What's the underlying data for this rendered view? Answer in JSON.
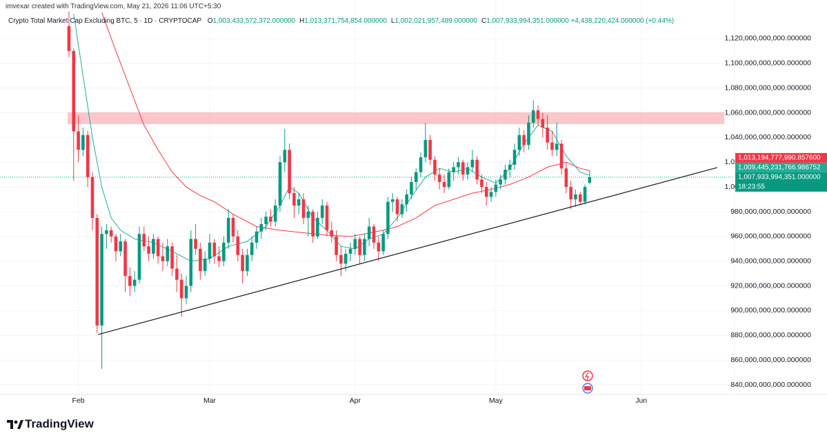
{
  "header": {
    "credit": "imvexar created with TradingView.com, May 21, 2026 11:06 UTC+5:30"
  },
  "chart_data": {
    "type": "candlestick",
    "title": "Crypto Total Market Cap Excluding BTC, 5 · 1D · CRYPTOCAP",
    "ohlc": [
      {
        "key": "O",
        "value": "1,003,433,572,372.000000"
      },
      {
        "key": "H",
        "value": "1,013,371,754,854.000000"
      },
      {
        "key": "L",
        "value": "1,002,021,957,489.000000"
      },
      {
        "key": "C",
        "value": "1,007,933,994,351.000000"
      }
    ],
    "change": "+4,438,220,424.000000 (+0.44%)",
    "up_color": "#089981",
    "down_color": "#f23645",
    "xlim": [
      -14.7,
      141.9
    ],
    "xticks": [
      {
        "value": 2,
        "label": "Feb"
      },
      {
        "value": 30,
        "label": "Mar"
      },
      {
        "value": 61,
        "label": "Apr"
      },
      {
        "value": 91,
        "label": "May"
      },
      {
        "value": 122,
        "label": "Jun"
      }
    ],
    "ylim": [
      832200000000,
      1151200000000
    ],
    "yticks": [
      {
        "value": 840000000000,
        "label": "840,000,000,000.000000"
      },
      {
        "value": 860000000000,
        "label": "860,000,000,000.000000"
      },
      {
        "value": 880000000000,
        "label": "880,000,000,000.000000"
      },
      {
        "value": 900000000000,
        "label": "900,000,000,000.000000"
      },
      {
        "value": 920000000000,
        "label": "920,000,000,000.000000"
      },
      {
        "value": 940000000000,
        "label": "940,000,000,000.000000"
      },
      {
        "value": 960000000000,
        "label": "960,000,000,000.000000"
      },
      {
        "value": 980000000000,
        "label": "980,000,000,000.000000"
      },
      {
        "value": 1000000000000,
        "label": "1,000,000,000,000.000000"
      },
      {
        "value": 1020000000000,
        "label": "1,020,000,000,000.000000"
      },
      {
        "value": 1040000000000,
        "label": "1,040,000,000,000.000000"
      },
      {
        "value": 1060000000000,
        "label": "1,060,000,000,000.000000"
      },
      {
        "value": 1080000000000,
        "label": "1,080,000,000,000.000000"
      },
      {
        "value": 1100000000000,
        "label": "1,100,000,000,000.000000"
      },
      {
        "value": 1120000000000,
        "label": "1,120,000,000,000.000000"
      }
    ],
    "grid": true,
    "candles": [
      [
        1130000000000,
        1142000000000,
        1105000000000,
        1110000000000
      ],
      [
        1110000000000,
        1112000000000,
        1005000000000,
        1045000000000
      ],
      [
        1045000000000,
        1058000000000,
        1020000000000,
        1030000000000
      ],
      [
        1030000000000,
        1048000000000,
        1025000000000,
        1042000000000
      ],
      [
        1042000000000,
        1045000000000,
        1000000000000,
        1008000000000
      ],
      [
        1008000000000,
        1012000000000,
        965000000000,
        975000000000
      ],
      [
        975000000000,
        978000000000,
        882000000000,
        888000000000
      ],
      [
        888000000000,
        968000000000,
        853000000000,
        962000000000
      ],
      [
        962000000000,
        970000000000,
        950000000000,
        965000000000
      ],
      [
        965000000000,
        968000000000,
        955000000000,
        960000000000
      ],
      [
        960000000000,
        962000000000,
        940000000000,
        948000000000
      ],
      [
        948000000000,
        962000000000,
        944000000000,
        956000000000
      ],
      [
        956000000000,
        958000000000,
        915000000000,
        928000000000
      ],
      [
        928000000000,
        935000000000,
        912000000000,
        920000000000
      ],
      [
        920000000000,
        932000000000,
        915000000000,
        925000000000
      ],
      [
        925000000000,
        968000000000,
        922000000000,
        962000000000
      ],
      [
        962000000000,
        968000000000,
        948000000000,
        952000000000
      ],
      [
        952000000000,
        960000000000,
        940000000000,
        946000000000
      ],
      [
        946000000000,
        962000000000,
        942000000000,
        958000000000
      ],
      [
        958000000000,
        960000000000,
        938000000000,
        944000000000
      ],
      [
        944000000000,
        955000000000,
        932000000000,
        940000000000
      ],
      [
        940000000000,
        958000000000,
        936000000000,
        952000000000
      ],
      [
        952000000000,
        955000000000,
        928000000000,
        934000000000
      ],
      [
        934000000000,
        945000000000,
        915000000000,
        925000000000
      ],
      [
        925000000000,
        930000000000,
        895000000000,
        910000000000
      ],
      [
        910000000000,
        928000000000,
        905000000000,
        920000000000
      ],
      [
        920000000000,
        965000000000,
        915000000000,
        958000000000
      ],
      [
        958000000000,
        970000000000,
        945000000000,
        950000000000
      ],
      [
        950000000000,
        955000000000,
        925000000000,
        932000000000
      ],
      [
        932000000000,
        948000000000,
        928000000000,
        942000000000
      ],
      [
        942000000000,
        962000000000,
        938000000000,
        955000000000
      ],
      [
        955000000000,
        958000000000,
        938000000000,
        944000000000
      ],
      [
        944000000000,
        952000000000,
        935000000000,
        940000000000
      ],
      [
        940000000000,
        960000000000,
        936000000000,
        955000000000
      ],
      [
        955000000000,
        982000000000,
        950000000000,
        975000000000
      ],
      [
        975000000000,
        978000000000,
        955000000000,
        960000000000
      ],
      [
        960000000000,
        965000000000,
        940000000000,
        945000000000
      ],
      [
        945000000000,
        950000000000,
        922000000000,
        932000000000
      ],
      [
        932000000000,
        950000000000,
        928000000000,
        945000000000
      ],
      [
        945000000000,
        960000000000,
        940000000000,
        955000000000
      ],
      [
        955000000000,
        968000000000,
        950000000000,
        964000000000
      ],
      [
        964000000000,
        975000000000,
        958000000000,
        970000000000
      ],
      [
        970000000000,
        980000000000,
        965000000000,
        976000000000
      ],
      [
        976000000000,
        982000000000,
        968000000000,
        972000000000
      ],
      [
        972000000000,
        990000000000,
        968000000000,
        985000000000
      ],
      [
        985000000000,
        1025000000000,
        980000000000,
        1020000000000
      ],
      [
        1020000000000,
        1047000000000,
        1012000000000,
        1030000000000
      ],
      [
        1030000000000,
        1035000000000,
        990000000000,
        995000000000
      ],
      [
        995000000000,
        1000000000000,
        975000000000,
        985000000000
      ],
      [
        985000000000,
        995000000000,
        978000000000,
        990000000000
      ],
      [
        990000000000,
        995000000000,
        970000000000,
        975000000000
      ],
      [
        975000000000,
        985000000000,
        960000000000,
        980000000000
      ],
      [
        980000000000,
        982000000000,
        955000000000,
        960000000000
      ],
      [
        960000000000,
        980000000000,
        958000000000,
        975000000000
      ],
      [
        975000000000,
        990000000000,
        970000000000,
        985000000000
      ],
      [
        985000000000,
        988000000000,
        960000000000,
        965000000000
      ],
      [
        965000000000,
        972000000000,
        955000000000,
        960000000000
      ],
      [
        960000000000,
        965000000000,
        940000000000,
        945000000000
      ],
      [
        945000000000,
        952000000000,
        928000000000,
        938000000000
      ],
      [
        938000000000,
        950000000000,
        932000000000,
        946000000000
      ],
      [
        946000000000,
        955000000000,
        940000000000,
        950000000000
      ],
      [
        950000000000,
        962000000000,
        945000000000,
        958000000000
      ],
      [
        958000000000,
        960000000000,
        938000000000,
        945000000000
      ],
      [
        945000000000,
        962000000000,
        940000000000,
        958000000000
      ],
      [
        958000000000,
        975000000000,
        952000000000,
        968000000000
      ],
      [
        968000000000,
        970000000000,
        950000000000,
        955000000000
      ],
      [
        955000000000,
        960000000000,
        940000000000,
        948000000000
      ],
      [
        948000000000,
        965000000000,
        945000000000,
        962000000000
      ],
      [
        962000000000,
        992000000000,
        958000000000,
        988000000000
      ],
      [
        988000000000,
        995000000000,
        980000000000,
        990000000000
      ],
      [
        990000000000,
        992000000000,
        972000000000,
        978000000000
      ],
      [
        978000000000,
        990000000000,
        975000000000,
        986000000000
      ],
      [
        986000000000,
        998000000000,
        980000000000,
        994000000000
      ],
      [
        994000000000,
        1008000000000,
        990000000000,
        1004000000000
      ],
      [
        1004000000000,
        1015000000000,
        998000000000,
        1012000000000
      ],
      [
        1012000000000,
        1028000000000,
        1008000000000,
        1024000000000
      ],
      [
        1024000000000,
        1052000000000,
        1020000000000,
        1038000000000
      ],
      [
        1038000000000,
        1042000000000,
        1018000000000,
        1022000000000
      ],
      [
        1022000000000,
        1025000000000,
        1005000000000,
        1010000000000
      ],
      [
        1010000000000,
        1015000000000,
        998000000000,
        1004000000000
      ],
      [
        1004000000000,
        1010000000000,
        995000000000,
        1000000000000
      ],
      [
        1000000000000,
        1015000000000,
        998000000000,
        1012000000000
      ],
      [
        1012000000000,
        1020000000000,
        1005000000000,
        1016000000000
      ],
      [
        1016000000000,
        1024000000000,
        1010000000000,
        1020000000000
      ],
      [
        1020000000000,
        1022000000000,
        1005000000000,
        1010000000000
      ],
      [
        1010000000000,
        1020000000000,
        1006000000000,
        1016000000000
      ],
      [
        1016000000000,
        1030000000000,
        1012000000000,
        1022000000000
      ],
      [
        1022000000000,
        1025000000000,
        1002000000000,
        1006000000000
      ],
      [
        1006000000000,
        1010000000000,
        995000000000,
        1000000000000
      ],
      [
        1000000000000,
        1004000000000,
        985000000000,
        992000000000
      ],
      [
        992000000000,
        1000000000000,
        988000000000,
        996000000000
      ],
      [
        996000000000,
        1006000000000,
        992000000000,
        1002000000000
      ],
      [
        1002000000000,
        1010000000000,
        998000000000,
        1006000000000
      ],
      [
        1006000000000,
        1018000000000,
        1002000000000,
        1014000000000
      ],
      [
        1014000000000,
        1022000000000,
        1008000000000,
        1018000000000
      ],
      [
        1018000000000,
        1035000000000,
        1014000000000,
        1030000000000
      ],
      [
        1030000000000,
        1048000000000,
        1025000000000,
        1042000000000
      ],
      [
        1042000000000,
        1046000000000,
        1028000000000,
        1034000000000
      ],
      [
        1034000000000,
        1058000000000,
        1030000000000,
        1052000000000
      ],
      [
        1052000000000,
        1070000000000,
        1048000000000,
        1062000000000
      ],
      [
        1062000000000,
        1066000000000,
        1050000000000,
        1055000000000
      ],
      [
        1055000000000,
        1060000000000,
        1040000000000,
        1048000000000
      ],
      [
        1048000000000,
        1058000000000,
        1030000000000,
        1036000000000
      ],
      [
        1036000000000,
        1045000000000,
        1025000000000,
        1030000000000
      ],
      [
        1030000000000,
        1052000000000,
        1025000000000,
        1035000000000
      ],
      [
        1035000000000,
        1038000000000,
        1010000000000,
        1015000000000
      ],
      [
        1015000000000,
        1020000000000,
        995000000000,
        1000000000000
      ],
      [
        1000000000000,
        1005000000000,
        982000000000,
        990000000000
      ],
      [
        990000000000,
        998000000000,
        984000000000,
        994000000000
      ],
      [
        994000000000,
        996000000000,
        985000000000,
        988000000000
      ],
      [
        988000000000,
        1002000000000,
        986000000000,
        1000000000000
      ],
      [
        1003433572372,
        1013371754854,
        1002021957489,
        1007933994351
      ]
    ],
    "series": [
      {
        "color": "#f23645",
        "x": [
          7,
          10,
          13,
          16,
          19,
          22,
          25,
          28,
          31,
          35,
          40,
          45,
          50,
          55,
          60,
          63,
          67,
          70,
          74,
          78,
          82,
          86,
          90,
          94,
          98,
          102,
          106,
          109,
          111
        ],
        "values": [
          1141000000000,
          1110000000000,
          1080000000000,
          1050000000000,
          1030000000000,
          1012000000000,
          1000000000000,
          993000000000,
          988000000000,
          978000000000,
          968000000000,
          965000000000,
          963000000000,
          961000000000,
          960000000000,
          962000000000,
          965000000000,
          968000000000,
          975000000000,
          985000000000,
          990000000000,
          995000000000,
          998000000000,
          1002000000000,
          1008000000000,
          1016000000000,
          1020000000000,
          1015000000000,
          1013200000000
        ]
      },
      {
        "color": "#22ab94",
        "x": [
          1,
          3,
          5,
          7,
          9,
          11,
          14,
          18,
          22,
          26,
          30,
          34,
          38,
          42,
          45,
          47,
          49,
          52,
          55,
          58,
          61,
          64,
          67,
          70,
          73,
          76,
          79,
          82,
          85,
          88,
          91,
          94,
          97,
          100,
          103,
          106,
          109,
          111
        ],
        "values": [
          1140000000000,
          1090000000000,
          1040000000000,
          1000000000000,
          975000000000,
          965000000000,
          958000000000,
          955000000000,
          948000000000,
          940000000000,
          942000000000,
          952000000000,
          956000000000,
          968000000000,
          985000000000,
          1000000000000,
          995000000000,
          975000000000,
          965000000000,
          952000000000,
          950000000000,
          958000000000,
          962000000000,
          975000000000,
          992000000000,
          1008000000000,
          1015000000000,
          1012000000000,
          1015000000000,
          1008000000000,
          1003000000000,
          1015000000000,
          1035000000000,
          1050000000000,
          1045000000000,
          1025000000000,
          1012000000000,
          1009400000000
        ]
      }
    ],
    "zone": {
      "x": [
        -0.3,
        139.7
      ],
      "y": [
        1050800000000,
        1060300000000
      ],
      "color": "#f23645"
    },
    "trendline": {
      "x": [
        6.2,
        138.2
      ],
      "y": [
        880700000000,
        1015700000000
      ],
      "color": "#131722"
    },
    "price_labels": [
      {
        "value": 1013194777990.8575,
        "label": "1,013,194,777,990.857600",
        "color": "#f23645"
      },
      {
        "value": 1009445231766.9868,
        "label": "1,009,445,231,766.986752",
        "color": "#22ab94"
      },
      {
        "value": 1007933994351,
        "label": "1,007,933,994,351.000000",
        "countdown": "18:23:55",
        "color": "#089981"
      }
    ]
  },
  "footer": {
    "brand": "TradingView"
  }
}
